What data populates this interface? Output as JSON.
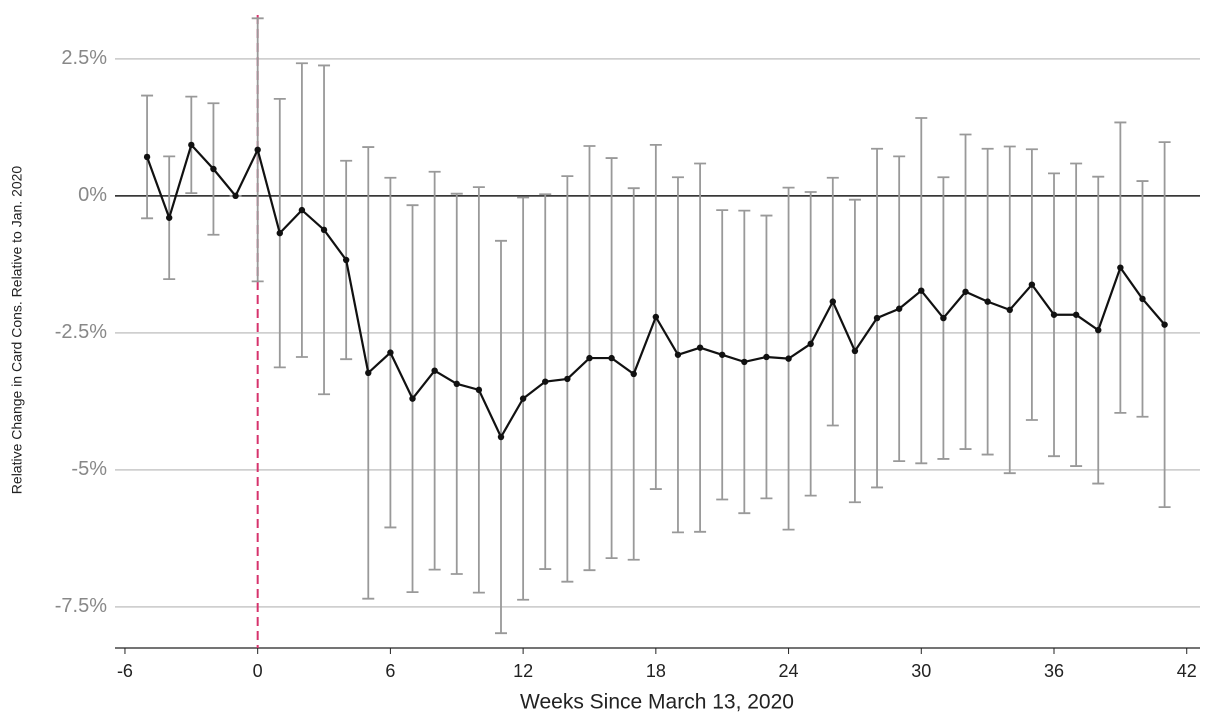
{
  "chart_data": {
    "type": "errorline",
    "x_label": "Weeks Since March 13, 2020",
    "y_label": "Relative Change in Card Cons. Relative to Jan. 2020",
    "x": [
      -5,
      -4,
      -3,
      -2,
      -1,
      0,
      1,
      2,
      3,
      4,
      5,
      6,
      7,
      8,
      9,
      10,
      11,
      12,
      13,
      14,
      15,
      16,
      17,
      18,
      19,
      20,
      21,
      22,
      23,
      24,
      25,
      26,
      27,
      28,
      29,
      30,
      31,
      32,
      33,
      34,
      35,
      36,
      37,
      38,
      39,
      40,
      41
    ],
    "values": [
      0.71,
      -0.4,
      0.93,
      0.49,
      0.0,
      0.84,
      -0.68,
      -0.26,
      -0.62,
      -1.17,
      -3.23,
      -2.86,
      -3.7,
      -3.19,
      -3.43,
      -3.54,
      -4.4,
      -3.7,
      -3.39,
      -3.34,
      -2.96,
      -2.96,
      -3.25,
      -2.21,
      -2.9,
      -2.77,
      -2.9,
      -3.03,
      -2.94,
      -2.97,
      -2.7,
      -1.93,
      -2.83,
      -2.23,
      -2.06,
      -1.73,
      -2.23,
      -1.75,
      -1.93,
      -2.08,
      -1.62,
      -2.17,
      -2.17,
      -2.45,
      -1.31,
      -1.88,
      -2.35
    ],
    "errors": [
      1.12,
      1.12,
      0.88,
      1.2,
      0,
      2.4,
      2.45,
      2.68,
      3.0,
      1.81,
      4.12,
      3.19,
      3.53,
      3.63,
      3.47,
      3.7,
      3.58,
      3.67,
      3.42,
      3.7,
      3.87,
      3.65,
      3.39,
      3.14,
      3.24,
      3.36,
      2.64,
      2.76,
      2.58,
      3.12,
      2.77,
      2.26,
      2.76,
      3.09,
      2.78,
      3.15,
      2.57,
      2.87,
      2.79,
      2.98,
      2.47,
      2.58,
      2.76,
      2.8,
      2.65,
      2.15,
      3.33
    ],
    "color": "#111111",
    "error_color": "#999999",
    "xlim": [
      -6.45,
      42.6
    ],
    "ylim": [
      -8.25,
      3.3
    ],
    "xticks": [
      -6,
      0,
      6,
      12,
      18,
      24,
      30,
      36,
      42
    ],
    "yticks": [
      {
        "value": -7.5,
        "label": "-7.5%"
      },
      {
        "value": -5,
        "label": "-5%"
      },
      {
        "value": -2.5,
        "label": "-2.5%"
      },
      {
        "value": 0,
        "label": "0%"
      },
      {
        "value": 2.5,
        "label": "2.5%"
      }
    ],
    "grid": true,
    "hline": 0,
    "vline": 0,
    "vline_color": "#d6336c"
  }
}
